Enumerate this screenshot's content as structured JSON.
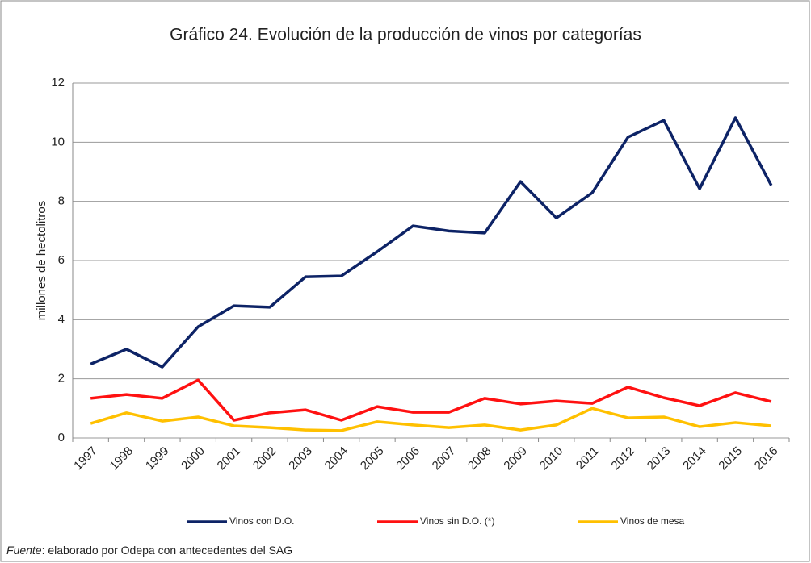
{
  "chart_data": {
    "type": "line",
    "title": "Gráfico 24. Evolución de la producción de vinos por categorías",
    "y_label": "millones de hectolitros",
    "categories": [
      "1997",
      "1998",
      "1999",
      "2000",
      "2001",
      "2002",
      "2003",
      "2004",
      "2005",
      "2006",
      "2007",
      "2008",
      "2009",
      "2010",
      "2011",
      "2012",
      "2013",
      "2014",
      "2015",
      "2016"
    ],
    "series": [
      {
        "name": "Vinos con D.O.",
        "color": "#0d2366",
        "values": [
          2.5,
          3.0,
          2.4,
          3.76,
          4.47,
          4.42,
          5.45,
          5.48,
          6.3,
          7.17,
          7.0,
          6.93,
          8.67,
          7.44,
          8.29,
          10.17,
          10.74,
          8.43,
          10.83,
          8.54
        ]
      },
      {
        "name": "Vinos sin D.O. (*)",
        "color": "#ff1111",
        "values": [
          1.34,
          1.47,
          1.34,
          1.96,
          0.6,
          0.85,
          0.95,
          0.6,
          1.06,
          0.87,
          0.87,
          1.34,
          1.15,
          1.25,
          1.17,
          1.72,
          1.36,
          1.09,
          1.53,
          1.23
        ]
      },
      {
        "name": "Vinos de mesa",
        "color": "#ffc000",
        "values": [
          0.49,
          0.85,
          0.57,
          0.71,
          0.41,
          0.35,
          0.27,
          0.25,
          0.55,
          0.44,
          0.35,
          0.44,
          0.27,
          0.44,
          1.0,
          0.68,
          0.71,
          0.38,
          0.52,
          0.41
        ]
      }
    ],
    "ylim": [
      0,
      12
    ],
    "yticks": [
      0,
      2,
      4,
      6,
      8,
      10,
      12
    ],
    "grid": true,
    "source_label": "Fuente",
    "source_text": ": elaborado por Odepa con antecedentes del SAG"
  }
}
